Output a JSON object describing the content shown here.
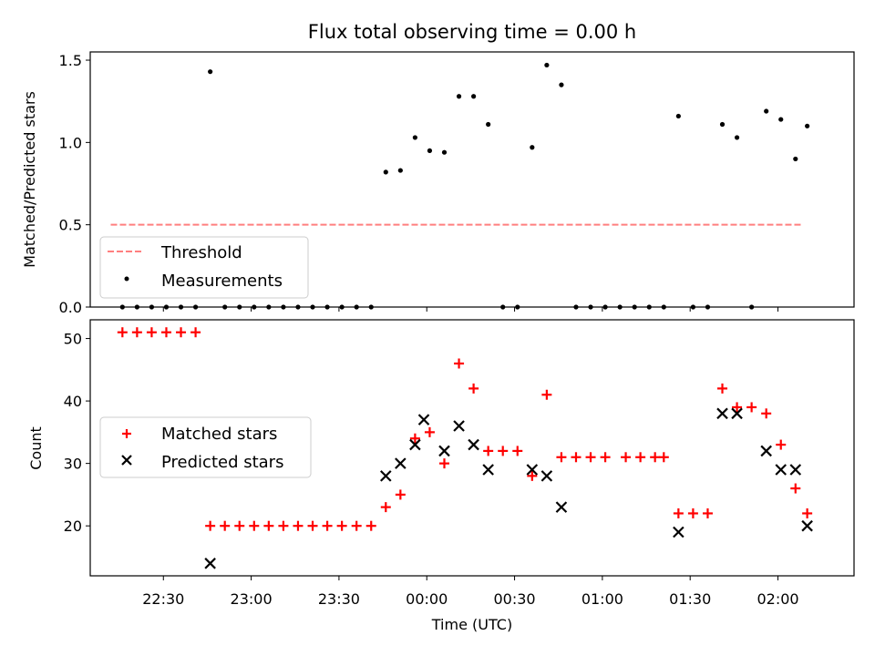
{
  "chart_data": [
    {
      "type": "scatter",
      "title": "Flux total observing time = 0.00 h",
      "xlabel": "",
      "ylabel": "Matched/Predicted stars",
      "xlim": [
        "22:05",
        "02:26"
      ],
      "ylim": [
        0,
        1.55
      ],
      "y_ticks": [
        0.0,
        0.5,
        1.0,
        1.5
      ],
      "y_tick_labels": [
        "0.0",
        "0.5",
        "1.0",
        "1.5"
      ],
      "legend_position": "lower-left",
      "threshold": {
        "name": "Threshold",
        "value": 0.5,
        "x_range": [
          "22:12",
          "02:08"
        ],
        "color": "#ff7f7f",
        "style": "dashed"
      },
      "series": [
        {
          "name": "Measurements",
          "color": "#000000",
          "marker": "dot",
          "points": [
            {
              "x": "22:16",
              "y": 0
            },
            {
              "x": "22:21",
              "y": 0
            },
            {
              "x": "22:26",
              "y": 0
            },
            {
              "x": "22:31",
              "y": 0
            },
            {
              "x": "22:36",
              "y": 0
            },
            {
              "x": "22:41",
              "y": 0
            },
            {
              "x": "22:46",
              "y": 1.43
            },
            {
              "x": "22:51",
              "y": 0
            },
            {
              "x": "22:56",
              "y": 0
            },
            {
              "x": "23:01",
              "y": 0
            },
            {
              "x": "23:06",
              "y": 0
            },
            {
              "x": "23:11",
              "y": 0
            },
            {
              "x": "23:16",
              "y": 0
            },
            {
              "x": "23:21",
              "y": 0
            },
            {
              "x": "23:26",
              "y": 0
            },
            {
              "x": "23:31",
              "y": 0
            },
            {
              "x": "23:36",
              "y": 0
            },
            {
              "x": "23:41",
              "y": 0
            },
            {
              "x": "23:46",
              "y": 0.82
            },
            {
              "x": "23:51",
              "y": 0.83
            },
            {
              "x": "23:56",
              "y": 1.03
            },
            {
              "x": "00:01",
              "y": 0.95
            },
            {
              "x": "00:06",
              "y": 0.94
            },
            {
              "x": "00:11",
              "y": 1.28
            },
            {
              "x": "00:16",
              "y": 1.28
            },
            {
              "x": "00:21",
              "y": 1.11
            },
            {
              "x": "00:26",
              "y": 0
            },
            {
              "x": "00:31",
              "y": 0
            },
            {
              "x": "00:36",
              "y": 0.97
            },
            {
              "x": "00:41",
              "y": 1.47
            },
            {
              "x": "00:46",
              "y": 1.35
            },
            {
              "x": "00:51",
              "y": 0
            },
            {
              "x": "00:56",
              "y": 0
            },
            {
              "x": "01:01",
              "y": 0
            },
            {
              "x": "01:06",
              "y": 0
            },
            {
              "x": "01:11",
              "y": 0
            },
            {
              "x": "01:16",
              "y": 0
            },
            {
              "x": "01:21",
              "y": 0
            },
            {
              "x": "01:26",
              "y": 1.16
            },
            {
              "x": "01:31",
              "y": 0
            },
            {
              "x": "01:36",
              "y": 0
            },
            {
              "x": "01:41",
              "y": 1.11
            },
            {
              "x": "01:46",
              "y": 1.03
            },
            {
              "x": "01:51",
              "y": 0
            },
            {
              "x": "01:56",
              "y": 1.19
            },
            {
              "x": "02:01",
              "y": 1.14
            },
            {
              "x": "02:06",
              "y": 0.9
            },
            {
              "x": "02:10",
              "y": 1.1
            }
          ]
        }
      ]
    },
    {
      "type": "scatter",
      "title": "",
      "xlabel": "Time (UTC)",
      "ylabel": "Count",
      "xlim": [
        "22:05",
        "02:26"
      ],
      "ylim": [
        12,
        53
      ],
      "x_ticks": [
        "22:30",
        "23:00",
        "23:30",
        "00:00",
        "00:30",
        "01:00",
        "01:30",
        "02:00"
      ],
      "y_ticks": [
        20,
        30,
        40,
        50
      ],
      "y_tick_labels": [
        "20",
        "30",
        "40",
        "50"
      ],
      "legend_position": "center-left",
      "series": [
        {
          "name": "Matched stars",
          "color": "#ff0000",
          "marker": "plus",
          "points": [
            {
              "x": "22:16",
              "y": 51
            },
            {
              "x": "22:21",
              "y": 51
            },
            {
              "x": "22:26",
              "y": 51
            },
            {
              "x": "22:31",
              "y": 51
            },
            {
              "x": "22:36",
              "y": 51
            },
            {
              "x": "22:41",
              "y": 51
            },
            {
              "x": "22:46",
              "y": 20
            },
            {
              "x": "22:51",
              "y": 20
            },
            {
              "x": "22:56",
              "y": 20
            },
            {
              "x": "23:01",
              "y": 20
            },
            {
              "x": "23:06",
              "y": 20
            },
            {
              "x": "23:11",
              "y": 20
            },
            {
              "x": "23:16",
              "y": 20
            },
            {
              "x": "23:21",
              "y": 20
            },
            {
              "x": "23:26",
              "y": 20
            },
            {
              "x": "23:31",
              "y": 20
            },
            {
              "x": "23:36",
              "y": 20
            },
            {
              "x": "23:41",
              "y": 20
            },
            {
              "x": "23:46",
              "y": 23
            },
            {
              "x": "23:51",
              "y": 25
            },
            {
              "x": "23:56",
              "y": 34
            },
            {
              "x": "00:01",
              "y": 35
            },
            {
              "x": "00:06",
              "y": 30
            },
            {
              "x": "00:11",
              "y": 46
            },
            {
              "x": "00:16",
              "y": 42
            },
            {
              "x": "00:21",
              "y": 32
            },
            {
              "x": "00:26",
              "y": 32
            },
            {
              "x": "00:31",
              "y": 32
            },
            {
              "x": "00:36",
              "y": 28
            },
            {
              "x": "00:41",
              "y": 41
            },
            {
              "x": "00:46",
              "y": 31
            },
            {
              "x": "00:51",
              "y": 31
            },
            {
              "x": "00:56",
              "y": 31
            },
            {
              "x": "01:01",
              "y": 31
            },
            {
              "x": "01:08",
              "y": 31
            },
            {
              "x": "01:13",
              "y": 31
            },
            {
              "x": "01:18",
              "y": 31
            },
            {
              "x": "01:21",
              "y": 31
            },
            {
              "x": "01:26",
              "y": 22
            },
            {
              "x": "01:31",
              "y": 22
            },
            {
              "x": "01:36",
              "y": 22
            },
            {
              "x": "01:41",
              "y": 42
            },
            {
              "x": "01:46",
              "y": 39
            },
            {
              "x": "01:51",
              "y": 39
            },
            {
              "x": "01:56",
              "y": 38
            },
            {
              "x": "02:01",
              "y": 33
            },
            {
              "x": "02:06",
              "y": 26
            },
            {
              "x": "02:10",
              "y": 22
            }
          ]
        },
        {
          "name": "Predicted stars",
          "color": "#000000",
          "marker": "x",
          "points": [
            {
              "x": "22:46",
              "y": 14
            },
            {
              "x": "23:46",
              "y": 28
            },
            {
              "x": "23:51",
              "y": 30
            },
            {
              "x": "23:56",
              "y": 33
            },
            {
              "x": "23:59",
              "y": 37
            },
            {
              "x": "00:06",
              "y": 32
            },
            {
              "x": "00:11",
              "y": 36
            },
            {
              "x": "00:16",
              "y": 33
            },
            {
              "x": "00:21",
              "y": 29
            },
            {
              "x": "00:36",
              "y": 29
            },
            {
              "x": "00:41",
              "y": 28
            },
            {
              "x": "00:46",
              "y": 23
            },
            {
              "x": "01:26",
              "y": 19
            },
            {
              "x": "01:41",
              "y": 38
            },
            {
              "x": "01:46",
              "y": 38
            },
            {
              "x": "01:56",
              "y": 32
            },
            {
              "x": "02:01",
              "y": 29
            },
            {
              "x": "02:06",
              "y": 29
            },
            {
              "x": "02:10",
              "y": 20
            }
          ]
        }
      ]
    }
  ]
}
